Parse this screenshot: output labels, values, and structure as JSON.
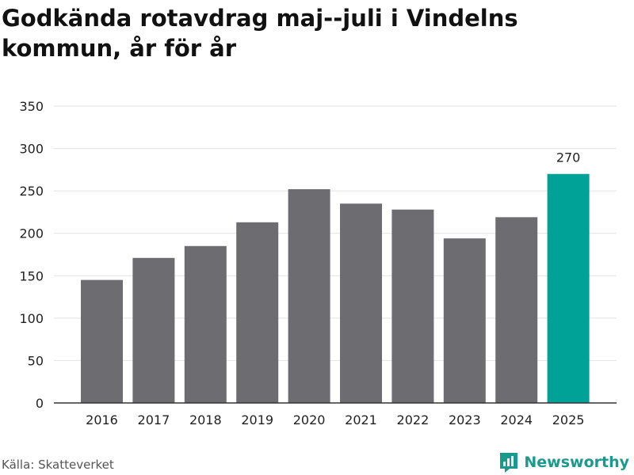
{
  "title": "Godkända rotavdrag maj--juli i Vindelns kommun, år för år",
  "source": "Källa: Skatteverket",
  "brand": {
    "name": "Newsworthy",
    "icon": "bar-chart-logo-icon"
  },
  "colors": {
    "bar": "#6d6c71",
    "highlight": "#00a298",
    "grid": "#e2e2e2",
    "axis": "#333333",
    "brand": "#1a9a8c"
  },
  "chart_data": {
    "type": "bar",
    "title": "Godkända rotavdrag maj--juli i Vindelns kommun, år för år",
    "xlabel": "",
    "ylabel": "",
    "categories": [
      "2016",
      "2017",
      "2018",
      "2019",
      "2020",
      "2021",
      "2022",
      "2023",
      "2024",
      "2025"
    ],
    "values": [
      145,
      171,
      185,
      213,
      252,
      235,
      228,
      194,
      219,
      270
    ],
    "highlight_index": 9,
    "data_labels": [
      {
        "index": 9,
        "text": "270"
      }
    ],
    "ylim": [
      0,
      350
    ],
    "yticks": [
      0,
      50,
      100,
      150,
      200,
      250,
      300,
      350
    ],
    "grid": true,
    "legend": "none"
  }
}
